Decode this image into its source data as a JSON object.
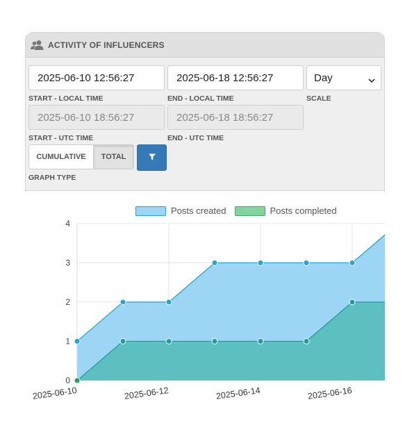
{
  "panel": {
    "title": "ACTIVITY OF INFLUENCERS",
    "icon": "users-icon"
  },
  "form": {
    "start_local": {
      "value": "2025-06-10 12:56:27",
      "label": "START - LOCAL TIME"
    },
    "end_local": {
      "value": "2025-06-18 12:56:27",
      "label": "END - LOCAL TIME"
    },
    "scale": {
      "value": "Day",
      "label": "SCALE"
    },
    "start_utc": {
      "value": "2025-06-10 18:56:27",
      "label": "START - UTC TIME"
    },
    "end_utc": {
      "value": "2025-06-18 18:56:27",
      "label": "END - UTC TIME"
    },
    "graph_type": {
      "label": "GRAPH TYPE",
      "options": [
        "CUMULATIVE",
        "TOTAL"
      ],
      "selected": "TOTAL"
    },
    "filter_icon": "filter-icon"
  },
  "colors": {
    "created_fill": "#9dd6f4",
    "created_line": "#22a7d2",
    "completed_fill": "#5cbfc0",
    "completed_line": "#1e9ca0",
    "legend_completed": "#84d4a0",
    "filter_button": "#337ab7"
  },
  "chart_data": {
    "type": "area",
    "x": [
      "2025-06-10",
      "2025-06-11",
      "2025-06-12",
      "2025-06-13",
      "2025-06-14",
      "2025-06-15",
      "2025-06-16",
      "2025-06-17"
    ],
    "x_tick_labels": [
      "2025-06-10",
      "2025-06-12",
      "2025-06-14",
      "2025-06-16"
    ],
    "series": [
      {
        "name": "Posts created",
        "values": [
          1,
          2,
          2,
          3,
          3,
          3,
          3,
          4
        ]
      },
      {
        "name": "Posts completed",
        "values": [
          0,
          1,
          1,
          1,
          1,
          1,
          2,
          2
        ]
      }
    ],
    "ylim": [
      0,
      4
    ],
    "y_ticks": [
      "0",
      "1",
      "2",
      "3",
      "4"
    ],
    "grid": true,
    "legend": "top"
  }
}
